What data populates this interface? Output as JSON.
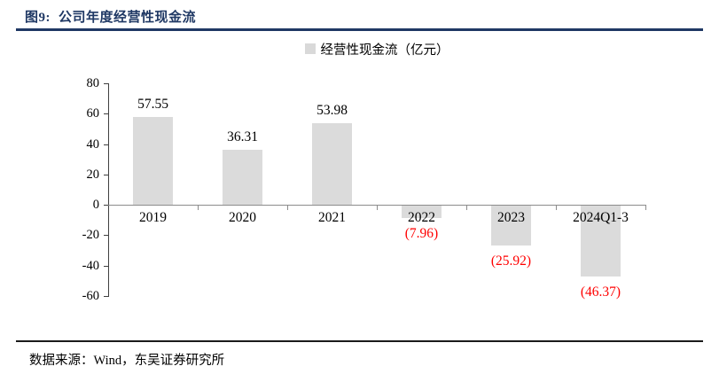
{
  "header": {
    "figure_label": "图9:",
    "title": "公司年度经营性现金流"
  },
  "legend": {
    "label": "经营性现金流（亿元）",
    "swatch_color": "#D9D9D9"
  },
  "footer": {
    "source": "数据来源：Wind，东吴证券研究所"
  },
  "colors": {
    "title_navy": "#1F3864",
    "bar_fill": "#DBDBDB",
    "negative_label": "#FF0000",
    "positive_label": "#000000",
    "zero_axis": "#8C8C8C",
    "y_axis": "#404040"
  },
  "chart_data": {
    "type": "bar",
    "title": "公司年度经营性现金流",
    "legend": [
      "经营性现金流（亿元）"
    ],
    "categories": [
      "2019",
      "2020",
      "2021",
      "2022",
      "2023",
      "2024Q1-3"
    ],
    "values": [
      57.55,
      36.31,
      53.98,
      -7.96,
      -25.92,
      -46.37
    ],
    "value_labels": [
      "57.55",
      "36.31",
      "53.98",
      "(7.96)",
      "(25.92)",
      "(46.37)"
    ],
    "ylabel": "亿元",
    "xlabel": "",
    "ylim": [
      -60,
      80
    ],
    "yticks": [
      80,
      60,
      40,
      20,
      0,
      -20,
      -40,
      -60
    ],
    "grid": false,
    "legend_position": "top-center",
    "negative_label_style": "red-parentheses"
  }
}
